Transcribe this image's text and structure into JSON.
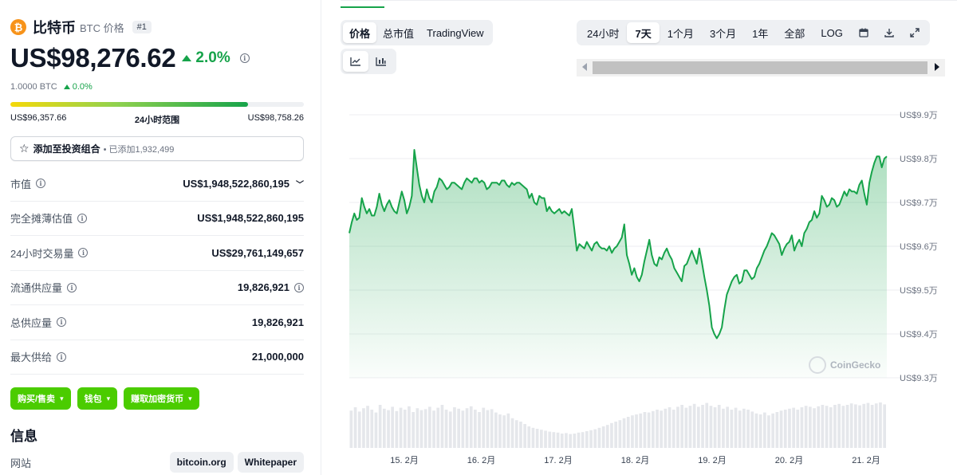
{
  "coin": {
    "logo_glyph": "₿",
    "name": "比特币",
    "symbol_label": "BTC 价格",
    "rank": "#1",
    "price": "US$98,276.62",
    "change_24h": "2.0%",
    "btc_price": "1.0000 BTC",
    "btc_change": "0.0%",
    "range_fill_fraction": 0.81,
    "range_low": "US$96,357.66",
    "range_label": "24小时范围",
    "range_high": "US$98,758.26"
  },
  "portfolio": {
    "label": "添加至投资组合",
    "added": "• 已添加1,932,499"
  },
  "stats": [
    {
      "label": "市值",
      "value": "US$1,948,522,860,195"
    },
    {
      "label": "完全摊薄估值",
      "value": "US$1,948,522,860,195"
    },
    {
      "label": "24小时交易量",
      "value": "US$29,761,149,657"
    },
    {
      "label": "流通供应量",
      "value": "19,826,921"
    },
    {
      "label": "总供应量",
      "value": "19,826,921"
    },
    {
      "label": "最大供给",
      "value": "21,000,000"
    }
  ],
  "actions": {
    "buy": "购买/售卖",
    "wallet": "钱包",
    "earn": "赚取加密货币"
  },
  "info": {
    "title": "信息",
    "website_label": "网站",
    "links": [
      "bitcoin.org",
      "Whitepaper"
    ]
  },
  "chart_controls": {
    "type_tabs": [
      "价格",
      "总市值",
      "TradingView"
    ],
    "active_type": 0,
    "range_tabs": [
      "24小时",
      "7天",
      "1个月",
      "3个月",
      "1年",
      "全部",
      "LOG"
    ],
    "active_range": 1
  },
  "watermark": "CoinGecko",
  "colors": {
    "accent_green": "#16a34a",
    "button_green": "#4bcc00",
    "btc_orange": "#f7931a"
  },
  "chart_data": {
    "type": "area",
    "title": "",
    "xlabel": "",
    "ylabel": "",
    "ylim": [
      93000,
      99000
    ],
    "y_ticks": [
      "US$9.9万",
      "US$9.8万",
      "US$9.7万",
      "US$9.6万",
      "US$9.5万",
      "US$9.4万",
      "US$9.3万"
    ],
    "x_ticks": [
      "15. 2月",
      "16. 2月",
      "17. 2月",
      "18. 2月",
      "19. 2月",
      "20. 2月",
      "21. 2月"
    ],
    "grid": true,
    "legend": "none",
    "series": [
      {
        "values": [
          96300,
          96550,
          96750,
          96600,
          96650,
          97100,
          96900,
          96750,
          96850,
          96700,
          96700,
          96900,
          97200,
          96950,
          96800,
          96950,
          97050,
          96900,
          96800,
          96750,
          97000,
          97250,
          97050,
          96750,
          96900,
          97150,
          98200,
          97800,
          97400,
          97150,
          97000,
          97300,
          97100,
          97000,
          97250,
          97350,
          97550,
          97500,
          97400,
          97300,
          97350,
          97450,
          97450,
          97400,
          97350,
          97300,
          97450,
          97550,
          97500,
          97450,
          97550,
          97550,
          97450,
          97500,
          97450,
          97300,
          97350,
          97450,
          97450,
          97450,
          97400,
          97500,
          97500,
          97400,
          97350,
          97450,
          97400,
          97450,
          97450,
          97400,
          97350,
          97300,
          97100,
          97200,
          97000,
          96950,
          97150,
          97100,
          97100,
          96800,
          96900,
          96800,
          96750,
          96800,
          96850,
          96750,
          96800,
          96750,
          96700,
          96850,
          96400,
          95900,
          96050,
          96000,
          95950,
          96100,
          96000,
          95900,
          96050,
          96100,
          96000,
          95950,
          95950,
          95900,
          96000,
          95850,
          95950,
          96000,
          96100,
          96200,
          96500,
          95800,
          95600,
          95350,
          95500,
          95300,
          95200,
          95350,
          95650,
          95900,
          96150,
          95800,
          95600,
          95550,
          95750,
          95700,
          95850,
          95950,
          95800,
          95700,
          95500,
          95400,
          95300,
          95200,
          95550,
          95600,
          95750,
          95900,
          95750,
          95600,
          95950,
          95650,
          95300,
          95000,
          94650,
          94150,
          94000,
          93900,
          94000,
          94150,
          94550,
          94900,
          95050,
          95200,
          95300,
          95350,
          95150,
          95200,
          95450,
          95450,
          95350,
          95250,
          95300,
          95500,
          95600,
          95750,
          95900,
          96000,
          96150,
          96300,
          96250,
          96150,
          96050,
          95800,
          95950,
          96050,
          96100,
          96250,
          95900,
          96050,
          96150,
          96000,
          96300,
          96400,
          96550,
          96600,
          96800,
          96650,
          96750,
          97150,
          97050,
          96900,
          96950,
          97100,
          97050,
          96900,
          96950,
          97100,
          97250,
          97150,
          97300,
          97250,
          97250,
          97200,
          97400,
          97500,
          97200,
          96950,
          97450,
          97700,
          97900,
          98050,
          98050,
          97800,
          98000,
          98050
        ]
      }
    ],
    "volume_relative": [
      0.78,
      0.85,
      0.76,
      0.83,
      0.88,
      0.8,
      0.74,
      0.9,
      0.82,
      0.79,
      0.86,
      0.77,
      0.84,
      0.8,
      0.87,
      0.75,
      0.83,
      0.79,
      0.81,
      0.86,
      0.78,
      0.84,
      0.9,
      0.8,
      0.76,
      0.85,
      0.82,
      0.78,
      0.83,
      0.87,
      0.8,
      0.75,
      0.84,
      0.79,
      0.81,
      0.74,
      0.7,
      0.68,
      0.72,
      0.62,
      0.58,
      0.55,
      0.5,
      0.45,
      0.42,
      0.4,
      0.38,
      0.36,
      0.34,
      0.33,
      0.32,
      0.3,
      0.31,
      0.29,
      0.3,
      0.32,
      0.33,
      0.35,
      0.37,
      0.39,
      0.42,
      0.45,
      0.48,
      0.52,
      0.55,
      0.58,
      0.62,
      0.65,
      0.68,
      0.7,
      0.72,
      0.75,
      0.74,
      0.77,
      0.8,
      0.78,
      0.82,
      0.85,
      0.8,
      0.86,
      0.9,
      0.84,
      0.88,
      0.92,
      0.86,
      0.9,
      0.94,
      0.88,
      0.85,
      0.9,
      0.82,
      0.86,
      0.8,
      0.84,
      0.78,
      0.82,
      0.8,
      0.76,
      0.72,
      0.7,
      0.74,
      0.68,
      0.72,
      0.75,
      0.78,
      0.8,
      0.82,
      0.84,
      0.8,
      0.85,
      0.88,
      0.86,
      0.83,
      0.87,
      0.9,
      0.88,
      0.85,
      0.9,
      0.92,
      0.88,
      0.9,
      0.93,
      0.91,
      0.89,
      0.92,
      0.94,
      0.9,
      0.93,
      0.95,
      0.91
    ]
  }
}
